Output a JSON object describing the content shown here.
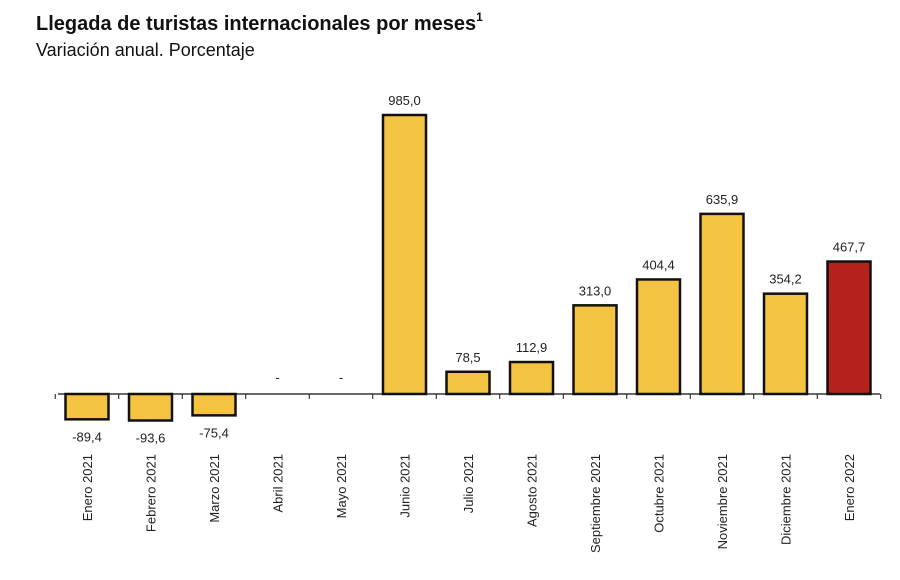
{
  "title": "Llegada de turistas internacionales por meses",
  "title_footnote": "1",
  "subtitle": "Variación anual. Porcentaje",
  "colors": {
    "bar": "#F5C342",
    "highlight": "#B5221B",
    "outline": "#111111",
    "axis": "#111111"
  },
  "chart_data": {
    "type": "bar",
    "title": "Llegada de turistas internacionales por meses",
    "subtitle": "Variación anual. Porcentaje",
    "categories": [
      "Enero 2021",
      "Febrero 2021",
      "Marzo 2021",
      "Abril 2021",
      "Mayo 2021",
      "Junio 2021",
      "Julio 2021",
      "Agosto 2021",
      "Septiembre 2021",
      "Octubre 2021",
      "Noviembre 2021",
      "Diciembre 2021",
      "Enero 2022"
    ],
    "values": [
      -89.4,
      -93.6,
      -75.4,
      null,
      null,
      985.0,
      78.5,
      112.9,
      313.0,
      404.4,
      635.9,
      354.2,
      467.7
    ],
    "labels": [
      "-89,4",
      "-93,6",
      "-75,4",
      "-",
      "-",
      "985,0",
      "78,5",
      "112,9",
      "313,0",
      "404,4",
      "635,9",
      "354,2",
      "467,7"
    ],
    "highlight_index": 12,
    "xlabel": "",
    "ylabel": "",
    "ylim": [
      -100,
      985
    ],
    "grid": false,
    "legend": "none"
  }
}
